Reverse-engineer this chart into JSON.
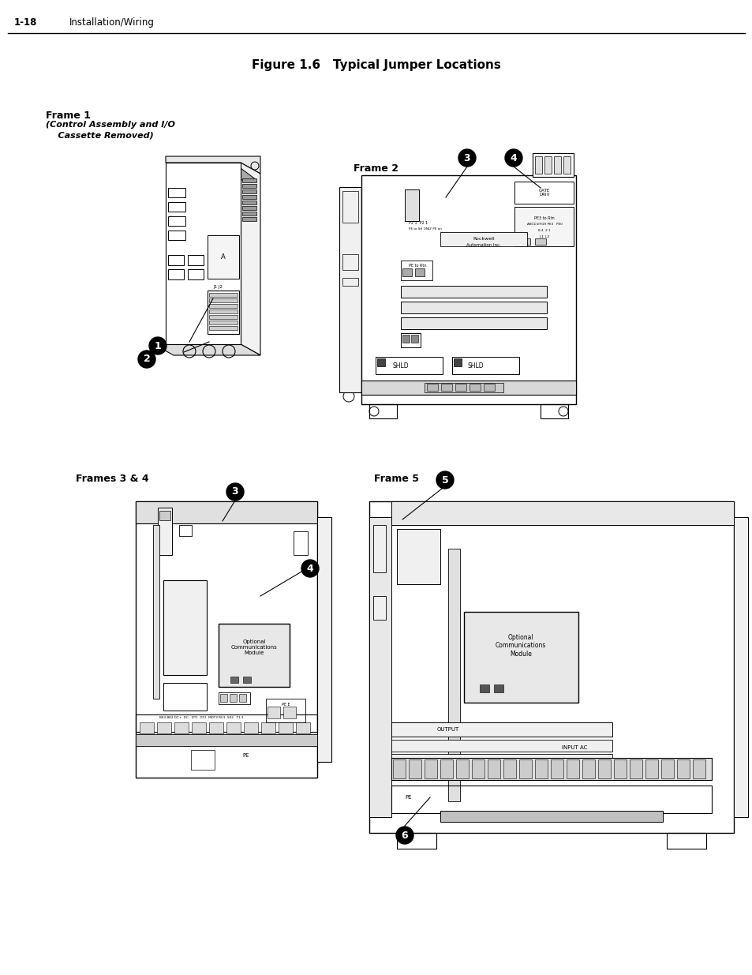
{
  "page_header_num": "1-18",
  "page_header_text": "Installation/Wiring",
  "figure_title": "Figure 1.6   Typical Jumper Locations",
  "frame1_label": "Frame 1",
  "frame1_sub1": "(Control Assembly and I/O",
  "frame1_sub2": "    Cassette Removed)",
  "frame2_label": "Frame 2",
  "frame3_label": "Frames 3 & 4",
  "frame5_label": "Frame 5",
  "bg_color": "#ffffff",
  "callout_bg": "#000000",
  "callout_fg": "#ffffff",
  "fig_width": 9.54,
  "fig_height": 12.35,
  "dpi": 100
}
